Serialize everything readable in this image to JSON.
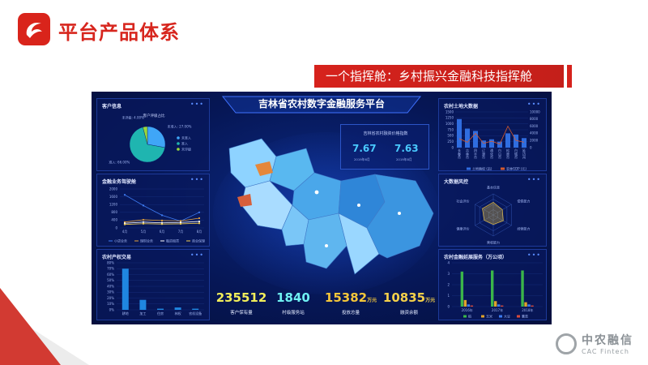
{
  "slide": {
    "title": "平台产品体系",
    "banner": "一个指挥舱：乡村振兴金融科技指挥舱",
    "footer_logo_cn": "中农融信",
    "footer_logo_en": "CAC Fintech",
    "brand_color": "#d7261e"
  },
  "dashboard": {
    "title": "吉林省农村数字金融服务平台",
    "more": "•••",
    "price_index": {
      "title": "吉林省农村融资价格指数",
      "items": [
        {
          "value": "7.67",
          "date": "2019年6月"
        },
        {
          "value": "7.63",
          "date": "2019年8月"
        }
      ]
    },
    "kpis": [
      {
        "value": "235512",
        "unit": "",
        "label": "客户保有量",
        "color": "#f2ee5a"
      },
      {
        "value": "1840",
        "unit": "",
        "label": "村级服务站",
        "color": "#6ff0f2"
      },
      {
        "value": "15382",
        "unit": "万元",
        "label": "投放总量",
        "color": "#f4c63a"
      },
      {
        "value": "10835",
        "unit": "万元",
        "label": "融资余额",
        "color": "#f4d04a"
      }
    ]
  },
  "panels": {
    "customer_info": {
      "title": "客户信息",
      "chart_data": {
        "type": "pie",
        "title": "客户评级占比",
        "slices": [
          {
            "name": "未准入",
            "value": 27.0,
            "label": "未准入: 27.00%",
            "color": "#3fa6f7"
          },
          {
            "name": "准入",
            "value": 66.0,
            "label": "准入: 66.00%",
            "color": "#1fb5b0"
          },
          {
            "name": "未评级",
            "value": 4.0,
            "label": "未评级: 4.00%",
            "color": "#9ad83b"
          }
        ],
        "legend": [
          "未准入",
          "准入",
          "未评级"
        ]
      }
    },
    "finance_service": {
      "title": "金融业务驾驶舱",
      "chart_data": {
        "type": "line",
        "x": [
          "4月",
          "5月",
          "6月",
          "7月",
          "8月"
        ],
        "ylim": [
          0,
          2000
        ],
        "yticks": [
          0,
          400,
          800,
          1200,
          1600,
          2000
        ],
        "series": [
          {
            "name": "小贷业务",
            "values": [
              1700,
              1150,
              650,
              350,
              800
            ],
            "color": "#3f7df5"
          },
          {
            "name": "理财业务",
            "values": [
              300,
              420,
              380,
              360,
              500
            ],
            "color": "#e5a23a"
          },
          {
            "name": "融资租赁",
            "values": [
              240,
              300,
              260,
              280,
              330
            ],
            "color": "#ffffff"
          },
          {
            "name": "商业保理",
            "values": [
              180,
              220,
              200,
              210,
              240
            ],
            "color": "#f5d050"
          }
        ]
      }
    },
    "property_trade": {
      "title": "农村产权交易",
      "chart_data": {
        "type": "bar",
        "categories": [
          "耕地",
          "加工",
          "住房",
          "林权",
          "农机设备"
        ],
        "values": [
          70,
          17,
          2,
          4,
          2
        ],
        "ylim": [
          0,
          80
        ],
        "yticks": [
          "0%",
          "10%",
          "20%",
          "30%",
          "40%",
          "50%",
          "60%",
          "70%",
          "80%"
        ],
        "color": "#1f86e0"
      }
    },
    "land_data": {
      "title": "农村土地大数据",
      "chart_data": {
        "type": "bar",
        "categories": [
          "长春市",
          "吉林市",
          "四平市",
          "辽源市",
          "通化市",
          "白山市",
          "松原市",
          "白城市",
          "延边州"
        ],
        "ylim": [
          0,
          1500
        ],
        "yticks": [
          0,
          250,
          500,
          750,
          1000,
          1250,
          1500
        ],
        "y2lim": [
          0,
          10000
        ],
        "y2ticks": [
          0,
          2000,
          4000,
          6000,
          8000,
          10000
        ],
        "series": [
          {
            "name": "土地确权 (亩)",
            "values": [
              1200,
              800,
              700,
              300,
              350,
              250,
              600,
              550,
              400
            ],
            "color": "#2f6de0"
          },
          {
            "name": "农林GDP (元)",
            "values": [
              2500,
              1500,
              4000,
              1200,
              1800,
              1000,
              6000,
              2000,
              1500
            ],
            "color": "#d45a2e"
          }
        ]
      }
    },
    "risk_control": {
      "title": "大数据风控",
      "chart_data": {
        "type": "radar",
        "axes": [
          "基本信息",
          "偿债能力",
          "经营能力",
          "营收能力",
          "健康评价",
          "社会评价"
        ],
        "values": [
          0.6,
          0.5,
          0.55,
          0.45,
          0.5,
          0.6
        ]
      }
    },
    "finance_expansion": {
      "title": "农村金融延展服务（万公顷）",
      "chart_data": {
        "type": "bar",
        "categories": [
          "2016年",
          "2017年",
          "2018年"
        ],
        "ylim": [
          0,
          4
        ],
        "yticks": [
          0,
          1,
          2,
          3,
          4
        ],
        "series": [
          {
            "name": "稻",
            "values": [
              3.2,
              3.3,
              3.3
            ],
            "color": "#3bb54a"
          },
          {
            "name": "玉米",
            "values": [
              0.6,
              0.5,
              0.4
            ],
            "color": "#e0a32a"
          },
          {
            "name": "大豆",
            "values": [
              0.2,
              0.2,
              0.2
            ],
            "color": "#3b7af0"
          },
          {
            "name": "薯类",
            "values": [
              0.1,
              0.1,
              0.1
            ],
            "color": "#d84a3c"
          }
        ]
      }
    }
  }
}
